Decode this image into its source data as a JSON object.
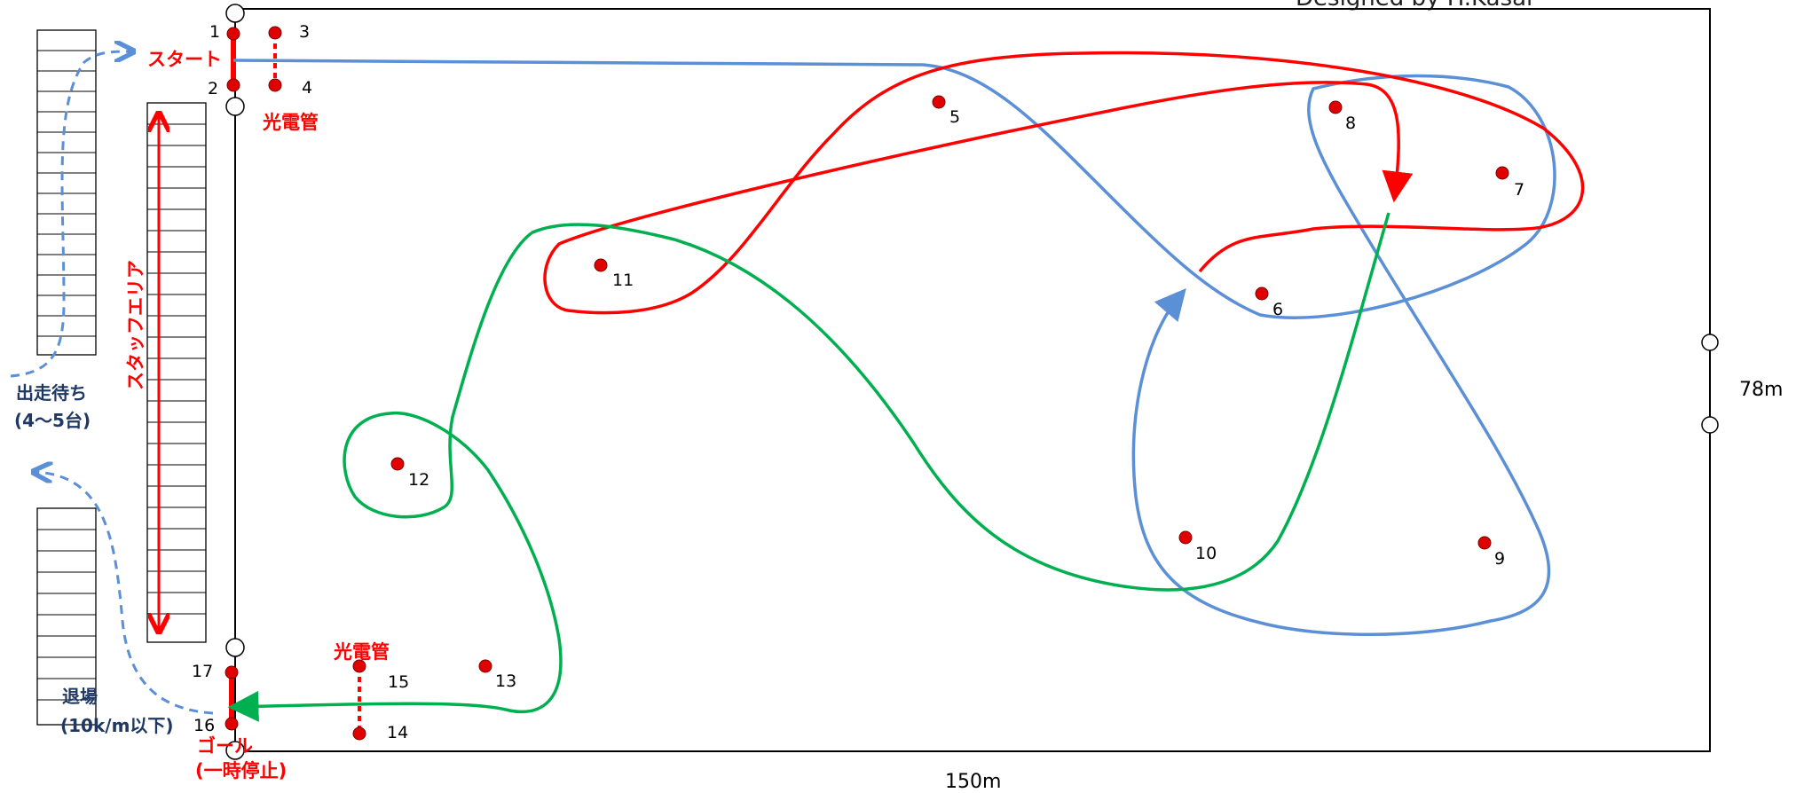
{
  "credit": "Designed by H.Kasai",
  "dimensions": {
    "width": "150m",
    "height": "78m"
  },
  "labels": {
    "start": "スタート",
    "goal": "ゴール",
    "goal_note": "(一時停止)",
    "photo_start": "光電管",
    "photo_goal": "光電管",
    "staff": "スタッフエリア",
    "waiting": "出走待ち",
    "waiting_note": "(4〜5台)",
    "exit": "退場",
    "exit_note": "(10k/m以下)"
  },
  "points": [
    "1",
    "2",
    "3",
    "4",
    "5",
    "6",
    "7",
    "8",
    "9",
    "10",
    "11",
    "12",
    "13",
    "14",
    "15",
    "16",
    "17"
  ],
  "colors": {
    "red": "#ff0000",
    "blue": "#5b8fd6",
    "green": "#00b050",
    "navy": "#1f3864"
  }
}
